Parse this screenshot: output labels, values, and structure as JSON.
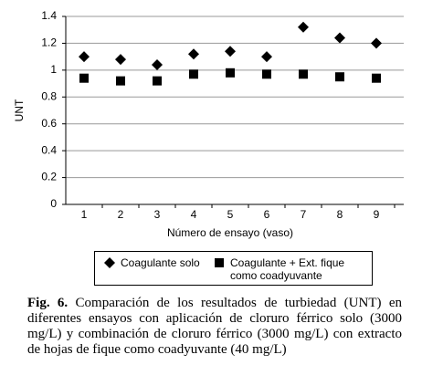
{
  "chart_data": {
    "type": "scatter",
    "x_label": "Número de ensayo (vaso)",
    "y_label": "UNT",
    "categories": [
      "1",
      "2",
      "3",
      "4",
      "5",
      "6",
      "7",
      "8",
      "9"
    ],
    "series": [
      {
        "name": "Coagulante solo",
        "color": "#000000",
        "marker": "diamond",
        "values": [
          1.1,
          1.08,
          1.04,
          1.12,
          1.14,
          1.1,
          1.32,
          1.24,
          1.2
        ]
      },
      {
        "name": "Coagulante + Ext. fique como coadyuvante",
        "color": "#000000",
        "marker": "square",
        "values": [
          0.94,
          0.92,
          0.92,
          0.97,
          0.98,
          0.97,
          0.97,
          0.95,
          0.94
        ]
      }
    ],
    "ylim": [
      0,
      1.4
    ],
    "yticks": [
      0,
      0.2,
      0.4,
      0.6,
      0.8,
      1,
      1.2,
      1.4
    ],
    "grid": true
  },
  "caption": {
    "label": "Fig. 6.",
    "text": "Comparación de los resultados de turbiedad (UNT) en diferentes ensayos con aplicación de cloruro férrico solo (3000 mg/L) y combinación de cloruro férrico (3000 mg/L) con extracto de hojas de fique como coadyuvante (40 mg/L)"
  }
}
